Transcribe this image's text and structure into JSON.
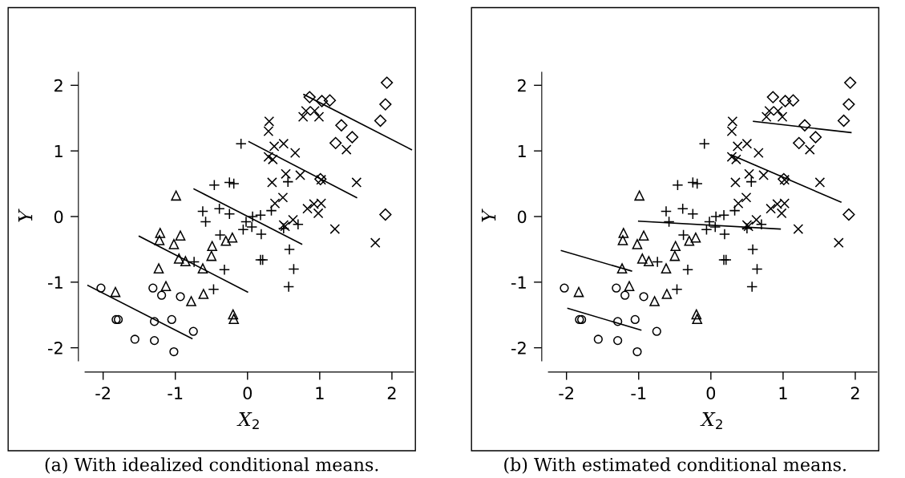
{
  "chart_data": [
    {
      "type": "scatter",
      "xlabel": "X$_{2}$",
      "ylabel": "Y",
      "annotations": [
        "(a) With idealized conditional means."
      ],
      "xlim": [
        -2.25,
        2.3
      ],
      "ylim": [
        -2.2,
        2.2
      ],
      "xticks": [
        -2,
        -1,
        0,
        1,
        2
      ],
      "yticks": [
        -2,
        -1,
        0,
        1,
        2
      ],
      "series": [
        {
          "type": "scatter",
          "marker": "circle",
          "color": "#000000",
          "x": [
            -2.03,
            -1.82,
            -1.79,
            -1.56,
            -1.31,
            -1.29,
            -1.29,
            -1.19,
            -1.05,
            -1.02,
            -0.93,
            -0.75
          ],
          "values": [
            -1.09,
            -1.57,
            -1.57,
            -1.87,
            -1.09,
            -1.6,
            -1.89,
            -1.2,
            -1.57,
            -2.06,
            -1.22,
            -1.75
          ]
        },
        {
          "type": "scatter",
          "marker": "triangle",
          "color": "#000000",
          "x": [
            -1.83,
            -0.99,
            -1.21,
            -1.22,
            -0.93,
            -1.02,
            -0.95,
            -0.86,
            -1.23,
            -1.13,
            -0.78,
            -0.62,
            -0.61,
            -0.49,
            -0.5,
            -0.3,
            -0.21,
            -0.2,
            -0.19
          ],
          "values": [
            -1.15,
            0.32,
            -0.25,
            -0.36,
            -0.29,
            -0.42,
            -0.64,
            -0.68,
            -0.79,
            -1.06,
            -1.29,
            -0.79,
            -1.18,
            -0.45,
            -0.6,
            -0.37,
            -0.32,
            -1.49,
            -1.56
          ]
        },
        {
          "type": "scatter",
          "marker": "plus",
          "color": "#000000",
          "x": [
            -0.09,
            -0.46,
            -0.25,
            -0.19,
            -0.62,
            -0.39,
            -0.25,
            -0.58,
            -0.38,
            -0.74,
            -0.32,
            -0.47,
            -0.02,
            -0.06,
            0.06,
            0.07,
            0.18,
            0.19,
            0.18,
            0.21,
            0.33,
            0.56,
            0.5,
            0.58,
            0.64,
            0.57,
            0.7
          ],
          "values": [
            1.11,
            0.48,
            0.52,
            0.5,
            0.08,
            0.12,
            0.04,
            -0.08,
            -0.28,
            -0.69,
            -0.81,
            -1.11,
            -0.08,
            -0.2,
            -0.16,
            0.0,
            0.02,
            -0.27,
            -0.66,
            -0.66,
            0.09,
            0.53,
            -0.18,
            -0.5,
            -0.8,
            -1.07,
            -0.12
          ]
        },
        {
          "type": "scatter",
          "marker": "cross",
          "color": "#000000",
          "x": [
            0.3,
            0.29,
            0.29,
            0.35,
            0.37,
            0.5,
            0.66,
            0.34,
            0.53,
            0.73,
            0.38,
            0.49,
            0.63,
            0.5,
            0.52,
            0.83,
            0.92,
            1.02,
            0.98,
            1.02,
            1.51,
            1.21,
            1.77,
            0.77,
            0.81,
            0.93,
            0.99,
            1.37
          ],
          "values": [
            1.45,
            1.3,
            0.91,
            0.87,
            1.07,
            1.11,
            0.97,
            0.52,
            0.65,
            0.63,
            0.2,
            0.29,
            -0.05,
            -0.13,
            -0.15,
            0.12,
            0.19,
            0.2,
            0.05,
            0.56,
            0.52,
            -0.19,
            -0.4,
            1.52,
            1.61,
            1.61,
            1.52,
            1.02
          ]
        },
        {
          "type": "scatter",
          "marker": "diamond",
          "color": "#000000",
          "x": [
            0.86,
            1.03,
            1.14,
            1.3,
            1.22,
            1.45,
            1.93,
            1.91,
            1.84,
            1.01,
            1.91
          ],
          "values": [
            1.82,
            1.76,
            1.77,
            1.39,
            1.12,
            1.21,
            2.04,
            1.71,
            1.46,
            0.57,
            0.03
          ]
        },
        {
          "type": "line",
          "color": "#000000",
          "x": [
            -2.21,
            -0.77
          ],
          "values": [
            -1.05,
            -1.86
          ]
        },
        {
          "type": "line",
          "color": "#000000",
          "x": [
            -1.5,
            0.0
          ],
          "values": [
            -0.3,
            -1.15
          ]
        },
        {
          "type": "line",
          "color": "#000000",
          "x": [
            -0.74,
            0.75
          ],
          "values": [
            0.42,
            -0.42
          ]
        },
        {
          "type": "line",
          "color": "#000000",
          "x": [
            0.02,
            1.51
          ],
          "values": [
            1.14,
            0.29
          ]
        },
        {
          "type": "line",
          "color": "#000000",
          "x": [
            0.78,
            2.27
          ],
          "values": [
            1.86,
            1.02
          ]
        }
      ]
    },
    {
      "type": "scatter",
      "xlabel": "X$_{2}$",
      "ylabel": "Y",
      "annotations": [
        "(b) With estimated conditional means."
      ],
      "xlim": [
        -2.25,
        2.3
      ],
      "ylim": [
        -2.2,
        2.2
      ],
      "xticks": [
        -2,
        -1,
        0,
        1,
        2
      ],
      "yticks": [
        -2,
        -1,
        0,
        1,
        2
      ],
      "series": [
        {
          "type": "scatter",
          "marker": "circle",
          "color": "#000000",
          "x": [
            -2.03,
            -1.82,
            -1.79,
            -1.56,
            -1.31,
            -1.29,
            -1.29,
            -1.19,
            -1.05,
            -1.02,
            -0.93,
            -0.75
          ],
          "values": [
            -1.09,
            -1.57,
            -1.57,
            -1.87,
            -1.09,
            -1.6,
            -1.89,
            -1.2,
            -1.57,
            -2.06,
            -1.22,
            -1.75
          ]
        },
        {
          "type": "scatter",
          "marker": "triangle",
          "color": "#000000",
          "x": [
            -1.83,
            -0.99,
            -1.21,
            -1.22,
            -0.93,
            -1.02,
            -0.95,
            -0.86,
            -1.23,
            -1.13,
            -0.78,
            -0.62,
            -0.61,
            -0.49,
            -0.5,
            -0.3,
            -0.21,
            -0.2,
            -0.19
          ],
          "values": [
            -1.15,
            0.32,
            -0.25,
            -0.36,
            -0.29,
            -0.42,
            -0.64,
            -0.68,
            -0.79,
            -1.06,
            -1.29,
            -0.79,
            -1.18,
            -0.45,
            -0.6,
            -0.37,
            -0.32,
            -1.49,
            -1.56
          ]
        },
        {
          "type": "scatter",
          "marker": "plus",
          "color": "#000000",
          "x": [
            -0.09,
            -0.46,
            -0.25,
            -0.19,
            -0.62,
            -0.39,
            -0.25,
            -0.58,
            -0.38,
            -0.74,
            -0.32,
            -0.47,
            -0.02,
            -0.06,
            0.06,
            0.07,
            0.18,
            0.19,
            0.18,
            0.21,
            0.33,
            0.56,
            0.5,
            0.58,
            0.64,
            0.57,
            0.7
          ],
          "values": [
            1.11,
            0.48,
            0.52,
            0.5,
            0.08,
            0.12,
            0.04,
            -0.08,
            -0.28,
            -0.69,
            -0.81,
            -1.11,
            -0.08,
            -0.2,
            -0.16,
            0.0,
            0.02,
            -0.27,
            -0.66,
            -0.66,
            0.09,
            0.53,
            -0.18,
            -0.5,
            -0.8,
            -1.07,
            -0.12
          ]
        },
        {
          "type": "scatter",
          "marker": "cross",
          "color": "#000000",
          "x": [
            0.3,
            0.29,
            0.29,
            0.35,
            0.37,
            0.5,
            0.66,
            0.34,
            0.53,
            0.73,
            0.38,
            0.49,
            0.63,
            0.5,
            0.52,
            0.83,
            0.92,
            1.02,
            0.98,
            1.02,
            1.51,
            1.21,
            1.77,
            0.77,
            0.81,
            0.93,
            0.99,
            1.37
          ],
          "values": [
            1.45,
            1.3,
            0.91,
            0.87,
            1.07,
            1.11,
            0.97,
            0.52,
            0.65,
            0.63,
            0.2,
            0.29,
            -0.05,
            -0.13,
            -0.15,
            0.12,
            0.19,
            0.2,
            0.05,
            0.56,
            0.52,
            -0.19,
            -0.4,
            1.52,
            1.61,
            1.61,
            1.52,
            1.02
          ]
        },
        {
          "type": "scatter",
          "marker": "diamond",
          "color": "#000000",
          "x": [
            0.86,
            1.03,
            1.14,
            1.3,
            1.22,
            1.45,
            1.93,
            1.91,
            1.84,
            1.01,
            1.91
          ],
          "values": [
            1.82,
            1.76,
            1.77,
            1.39,
            1.12,
            1.21,
            2.04,
            1.71,
            1.46,
            0.57,
            0.03
          ]
        },
        {
          "type": "line",
          "color": "#000000",
          "x": [
            -1.98,
            -0.97
          ],
          "values": [
            -1.4,
            -1.73
          ]
        },
        {
          "type": "line",
          "color": "#000000",
          "x": [
            -2.07,
            -1.1
          ],
          "values": [
            -0.52,
            -0.83
          ]
        },
        {
          "type": "line",
          "color": "#000000",
          "x": [
            -1.0,
            0.96
          ],
          "values": [
            -0.07,
            -0.19
          ]
        },
        {
          "type": "line",
          "color": "#000000",
          "x": [
            0.28,
            1.8
          ],
          "values": [
            0.94,
            0.22
          ]
        },
        {
          "type": "line",
          "color": "#000000",
          "x": [
            0.59,
            1.94
          ],
          "values": [
            1.45,
            1.28
          ]
        }
      ]
    }
  ]
}
